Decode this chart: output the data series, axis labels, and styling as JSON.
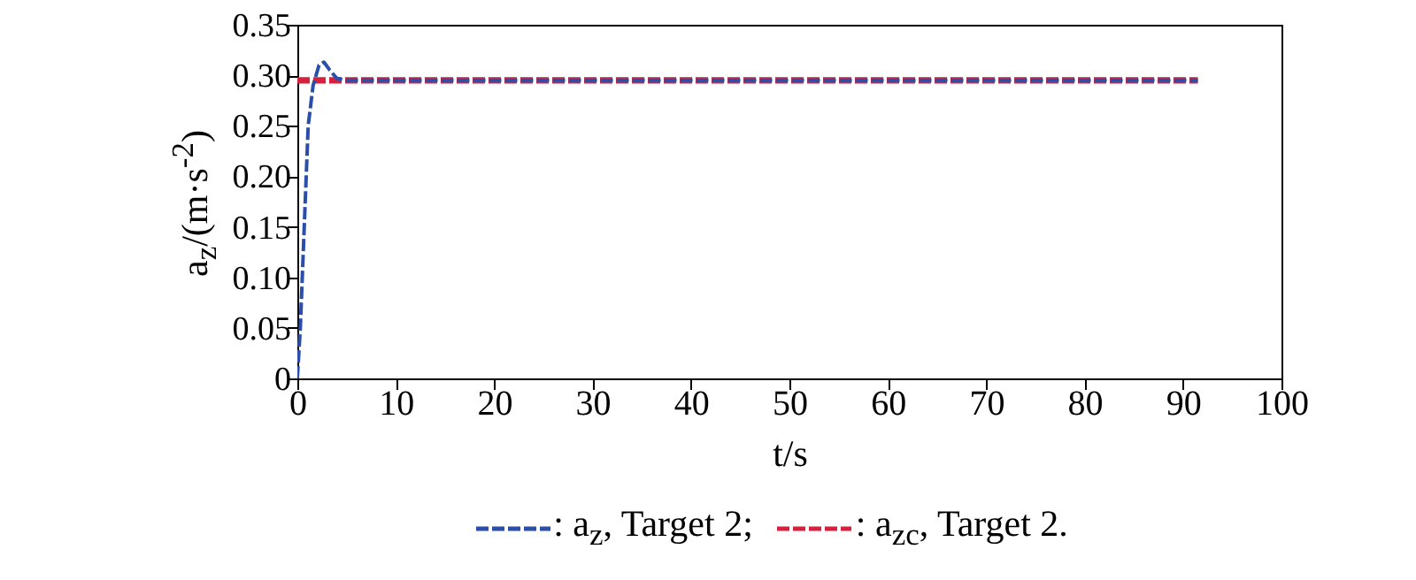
{
  "chart_data": {
    "type": "line",
    "xlabel": "t/s",
    "ylabel": "a$_{z}$/(m·s$^{-2}$)",
    "xlim": [
      0,
      100
    ],
    "xticks": [
      0,
      10,
      20,
      30,
      40,
      50,
      60,
      70,
      80,
      90,
      100
    ],
    "ylim": [
      0,
      0.35
    ],
    "yticks": [
      0,
      0.05,
      {
        "value": 0.1,
        "label": "0.10"
      },
      0.15,
      {
        "value": 0.2,
        "label": "0.20"
      },
      0.25,
      {
        "value": 0.3,
        "label": "0.30"
      },
      0.35
    ],
    "grid": false,
    "legend": "bottom",
    "marker": "none",
    "series": [
      {
        "name": ": a$_{z}$, Target 2;",
        "color": "#2b4fa8",
        "line_style": "dashed",
        "x": [
          0,
          0.3,
          0.7,
          1.1,
          1.6,
          2.2,
          2.7,
          3.3,
          4,
          5,
          91.5
        ],
        "values": [
          0,
          0.05,
          0.15,
          0.25,
          0.29,
          0.31,
          0.313,
          0.305,
          0.297,
          0.295,
          0.295
        ]
      },
      {
        "name": ": a$_{zc}$, Target 2.",
        "color": "#d6203c",
        "line_style": "dashed",
        "x": [
          0,
          91.5
        ],
        "values": [
          0.295,
          0.295
        ]
      }
    ]
  }
}
